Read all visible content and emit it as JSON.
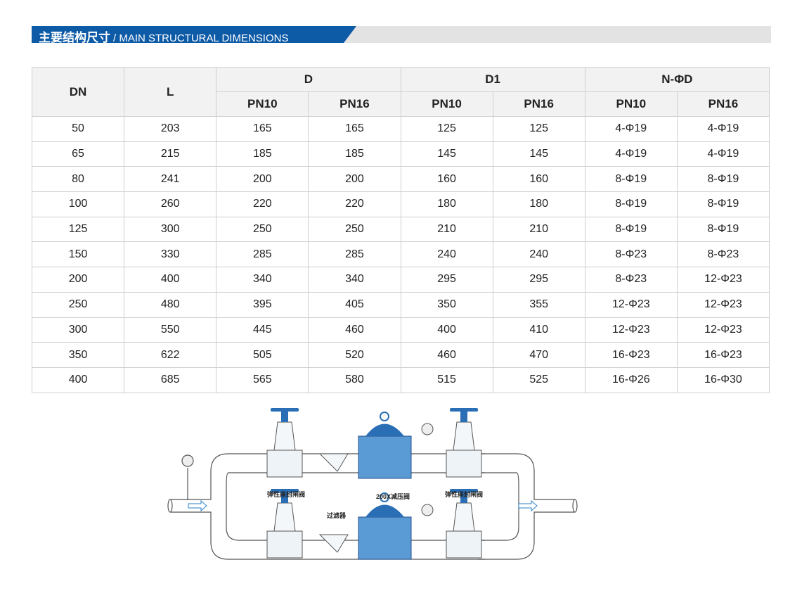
{
  "section": {
    "title_cn": "主要结构尺寸",
    "title_en": "/ MAIN STRUCTURAL DIMENSIONS",
    "accent": "#0d5aa7"
  },
  "table": {
    "headers": {
      "dn": "DN",
      "l": "L",
      "d": "D",
      "d1": "D1",
      "nphid": "N-ΦD",
      "pn10": "PN10",
      "pn16": "PN16"
    },
    "rows": [
      [
        "50",
        "203",
        "165",
        "165",
        "125",
        "125",
        "4-Φ19",
        "4-Φ19"
      ],
      [
        "65",
        "215",
        "185",
        "185",
        "145",
        "145",
        "4-Φ19",
        "4-Φ19"
      ],
      [
        "80",
        "241",
        "200",
        "200",
        "160",
        "160",
        "8-Φ19",
        "8-Φ19"
      ],
      [
        "100",
        "260",
        "220",
        "220",
        "180",
        "180",
        "8-Φ19",
        "8-Φ19"
      ],
      [
        "125",
        "300",
        "250",
        "250",
        "210",
        "210",
        "8-Φ19",
        "8-Φ19"
      ],
      [
        "150",
        "330",
        "285",
        "285",
        "240",
        "240",
        "8-Φ23",
        "8-Φ23"
      ],
      [
        "200",
        "400",
        "340",
        "340",
        "295",
        "295",
        "8-Φ23",
        "12-Φ23"
      ],
      [
        "250",
        "480",
        "395",
        "405",
        "350",
        "355",
        "12-Φ23",
        "12-Φ23"
      ],
      [
        "300",
        "550",
        "445",
        "460",
        "400",
        "410",
        "12-Φ23",
        "12-Φ23"
      ],
      [
        "350",
        "622",
        "505",
        "520",
        "460",
        "470",
        "16-Φ23",
        "16-Φ23"
      ],
      [
        "400",
        "685",
        "565",
        "580",
        "515",
        "525",
        "16-Φ26",
        "16-Φ30"
      ]
    ]
  },
  "diagram": {
    "gate_valve_left": "弹性座封闸阀",
    "reducing_valve": "200X减压阀",
    "gate_valve_right": "弹性座封闸阀",
    "filter": "过滤器"
  }
}
